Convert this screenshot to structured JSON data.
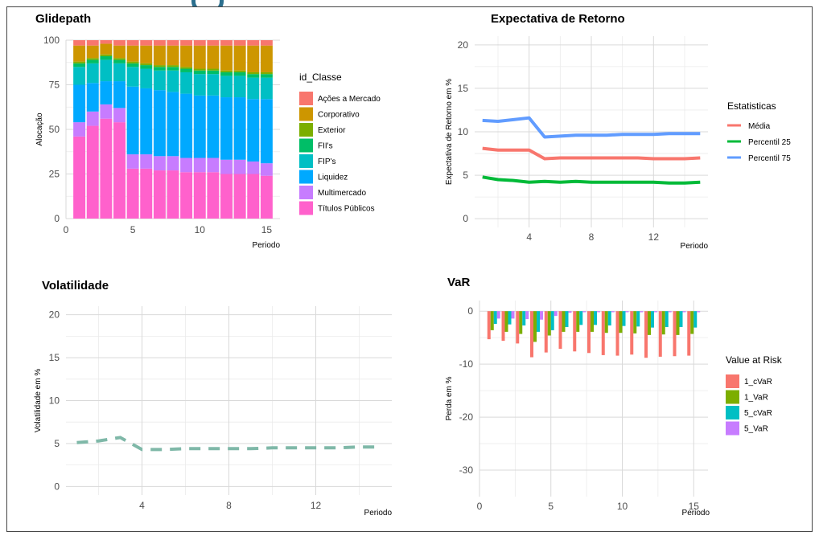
{
  "colors": {
    "acoes": "#F8766D",
    "corporativo": "#CD9600",
    "exterior": "#7CAE00",
    "fiis": "#00BE67",
    "fips": "#00BFC4",
    "liquidez": "#00A9FF",
    "multimercado": "#C77CFF",
    "titulos": "#FF61CC",
    "volatilidade": "#7FB8A8"
  },
  "chart_data": [
    {
      "id": "glidepath",
      "type": "bar",
      "stacked": true,
      "title": "Glidepath",
      "xlabel": "Periodo",
      "ylabel": "Alocação",
      "xlim": [
        0,
        16
      ],
      "ylim": [
        0,
        100
      ],
      "xticks": [
        0,
        5,
        10,
        15
      ],
      "yticks": [
        0,
        25,
        50,
        75,
        100
      ],
      "grid": true,
      "legend_title": "id_Classe",
      "legend_position": "right",
      "categories": [
        1,
        2,
        3,
        4,
        5,
        6,
        7,
        8,
        9,
        10,
        11,
        12,
        13,
        14,
        15
      ],
      "series": [
        {
          "name": "Títulos Públicos",
          "color": "#FF61CC",
          "values": [
            46,
            52,
            56,
            54,
            28,
            28,
            27,
            27,
            26,
            26,
            26,
            25,
            25,
            25,
            24
          ]
        },
        {
          "name": "Multimercado",
          "color": "#C77CFF",
          "values": [
            8,
            8,
            8,
            8,
            8,
            8,
            8,
            8,
            8,
            8,
            8,
            8,
            8,
            7,
            7
          ]
        },
        {
          "name": "Liquidez",
          "color": "#00A9FF",
          "values": [
            21,
            16,
            13,
            15,
            38,
            37,
            37,
            36,
            36,
            35,
            35,
            35,
            35,
            35,
            36
          ]
        },
        {
          "name": "FIP's",
          "color": "#00BFC4",
          "values": [
            10,
            11,
            12,
            10,
            11,
            11,
            11,
            12,
            12,
            12,
            12,
            12,
            12,
            12,
            12
          ]
        },
        {
          "name": "FII's",
          "color": "#00BE67",
          "values": [
            2,
            2,
            2,
            2,
            2,
            2,
            2,
            2,
            2,
            2,
            2,
            2,
            2,
            2,
            2
          ]
        },
        {
          "name": "Exterior",
          "color": "#7CAE00",
          "values": [
            1,
            1,
            1,
            1,
            1,
            1,
            1,
            1,
            1,
            1,
            1,
            1,
            1,
            1,
            1
          ]
        },
        {
          "name": "Corporativo",
          "color": "#CD9600",
          "values": [
            9,
            7,
            6,
            7,
            9,
            10,
            11,
            11,
            12,
            13,
            13,
            14,
            14,
            15,
            15
          ]
        },
        {
          "name": "Ações a Mercado",
          "color": "#F8766D",
          "values": [
            3,
            3,
            2,
            3,
            3,
            3,
            3,
            3,
            3,
            3,
            3,
            3,
            3,
            3,
            3
          ]
        }
      ]
    },
    {
      "id": "expectativa",
      "type": "line",
      "title": "Expectativa de Retorno",
      "xlabel": "Periodo",
      "ylabel": "Expectativa de Retorno em %",
      "xlim": [
        0.5,
        15.5
      ],
      "ylim": [
        -1,
        21
      ],
      "xticks": [
        4,
        8,
        12
      ],
      "yticks": [
        0,
        5,
        10,
        15,
        20
      ],
      "grid": true,
      "legend_title": "Estatisticas",
      "legend_position": "right",
      "x": [
        1,
        2,
        3,
        4,
        5,
        6,
        7,
        8,
        9,
        10,
        11,
        12,
        13,
        14,
        15
      ],
      "series": [
        {
          "name": "Média",
          "color": "#F8766D",
          "values": [
            8.1,
            7.9,
            7.9,
            7.9,
            6.9,
            7.0,
            7.0,
            7.0,
            7.0,
            7.0,
            7.0,
            6.9,
            6.9,
            6.9,
            7.0
          ]
        },
        {
          "name": "Percentil 25",
          "color": "#00BA38",
          "values": [
            4.8,
            4.5,
            4.4,
            4.2,
            4.3,
            4.2,
            4.3,
            4.2,
            4.2,
            4.2,
            4.2,
            4.2,
            4.1,
            4.1,
            4.2
          ]
        },
        {
          "name": "Percentil 75",
          "color": "#619CFF",
          "values": [
            11.3,
            11.2,
            11.4,
            11.6,
            9.4,
            9.5,
            9.6,
            9.6,
            9.6,
            9.7,
            9.7,
            9.7,
            9.8,
            9.8,
            9.8
          ]
        }
      ]
    },
    {
      "id": "volatilidade",
      "type": "line",
      "title": "Volatilidade",
      "xlabel": "Periodo",
      "ylabel": "Volatilidade em %",
      "xlim": [
        0.5,
        15.5
      ],
      "ylim": [
        -1,
        21
      ],
      "xticks": [
        4,
        8,
        12
      ],
      "yticks": [
        0,
        5,
        10,
        15,
        20
      ],
      "grid": true,
      "dashed": true,
      "x": [
        1,
        2,
        3,
        4,
        5,
        6,
        7,
        8,
        9,
        10,
        11,
        12,
        13,
        14,
        15
      ],
      "series": [
        {
          "color": "#7FB8A8",
          "values": [
            5.1,
            5.3,
            5.7,
            4.3,
            4.3,
            4.4,
            4.4,
            4.4,
            4.4,
            4.5,
            4.5,
            4.5,
            4.5,
            4.6,
            4.6
          ]
        }
      ]
    },
    {
      "id": "var",
      "type": "bar",
      "title": "VaR",
      "xlabel": "Periodo",
      "ylabel": "Perda em %",
      "xlim": [
        0,
        16
      ],
      "ylim": [
        -35,
        2
      ],
      "xticks": [
        0,
        5,
        10,
        15
      ],
      "yticks": [
        0,
        -10,
        -20,
        -30
      ],
      "grid": true,
      "legend_title": "Value at Risk",
      "legend_position": "right",
      "categories": [
        1,
        2,
        3,
        4,
        5,
        6,
        7,
        8,
        9,
        10,
        11,
        12,
        13,
        14,
        15
      ],
      "series": [
        {
          "name": "1_cVaR",
          "color": "#F8766D",
          "values": [
            -5.3,
            -5.6,
            -6.1,
            -8.7,
            -7.8,
            -7.1,
            -7.6,
            -7.9,
            -8.3,
            -8.4,
            -8.2,
            -8.8,
            -8.6,
            -8.5,
            -8.4
          ]
        },
        {
          "name": "1_VaR",
          "color": "#7CAE00",
          "values": [
            -3.6,
            -3.9,
            -4.3,
            -5.8,
            -4.6,
            -3.9,
            -3.9,
            -3.9,
            -4.1,
            -4.1,
            -4.2,
            -4.5,
            -4.4,
            -4.5,
            -4.3
          ]
        },
        {
          "name": "5_cVaR",
          "color": "#00BFC4",
          "values": [
            -2.4,
            -2.5,
            -2.7,
            -3.9,
            -3.6,
            -3.0,
            -2.6,
            -2.6,
            -2.7,
            -2.8,
            -2.9,
            -3.1,
            -3.0,
            -3.0,
            -3.1
          ]
        },
        {
          "name": "5_VaR",
          "color": "#C77CFF",
          "values": [
            -1.4,
            -1.4,
            -1.5,
            -1.6,
            -0.9,
            -0.3,
            -0.2,
            -0.2,
            -0.2,
            -0.2,
            -0.2,
            -0.2,
            -0.2,
            -0.2,
            -0.2
          ]
        }
      ]
    }
  ]
}
